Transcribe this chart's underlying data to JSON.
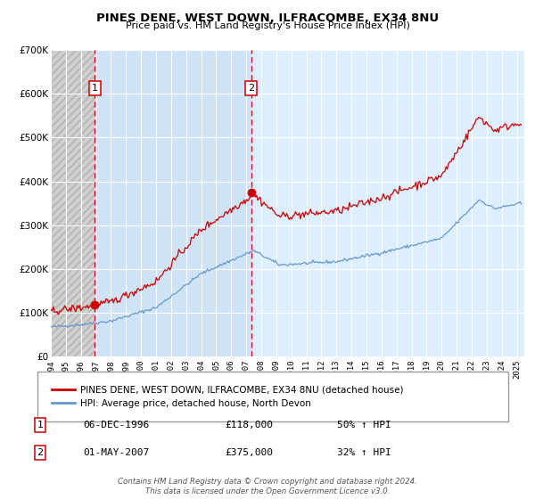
{
  "title": "PINES DENE, WEST DOWN, ILFRACOMBE, EX34 8NU",
  "subtitle": "Price paid vs. HM Land Registry's House Price Index (HPI)",
  "sale1_date_num": 1996.92,
  "sale1_price": 118000,
  "sale1_label": "1",
  "sale1_pct": "50% ↑ HPI",
  "sale1_date_str": "06-DEC-1996",
  "sale2_date_num": 2007.33,
  "sale2_price": 375000,
  "sale2_label": "2",
  "sale2_pct": "32% ↑ HPI",
  "sale2_date_str": "01-MAY-2007",
  "red_line_color": "#cc0000",
  "blue_line_color": "#6699cc",
  "background_plot": "#ddeeff",
  "grid_color": "#ffffff",
  "xmin": 1994.0,
  "xmax": 2025.5,
  "ymin": 0,
  "ymax": 700000,
  "yticks": [
    0,
    100000,
    200000,
    300000,
    400000,
    500000,
    600000,
    700000
  ],
  "ytick_labels": [
    "£0",
    "£100K",
    "£200K",
    "£300K",
    "£400K",
    "£500K",
    "£600K",
    "£700K"
  ],
  "xticks": [
    1994,
    1995,
    1996,
    1997,
    1998,
    1999,
    2000,
    2001,
    2002,
    2003,
    2004,
    2005,
    2006,
    2007,
    2008,
    2009,
    2010,
    2011,
    2012,
    2013,
    2014,
    2015,
    2016,
    2017,
    2018,
    2019,
    2020,
    2021,
    2022,
    2023,
    2024,
    2025
  ],
  "legend_red_label": "PINES DENE, WEST DOWN, ILFRACOMBE, EX34 8NU (detached house)",
  "legend_blue_label": "HPI: Average price, detached house, North Devon",
  "footnote": "Contains HM Land Registry data © Crown copyright and database right 2024.\nThis data is licensed under the Open Government Licence v3.0."
}
